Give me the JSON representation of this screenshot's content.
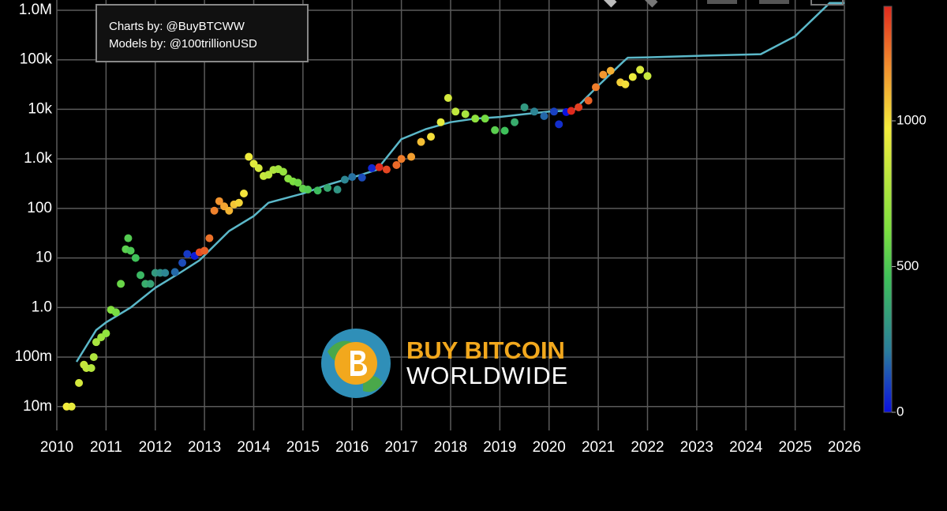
{
  "chart_data": {
    "type": "scatter",
    "log_y": true,
    "grid": true,
    "xlim": [
      2010,
      2026
    ],
    "xticks": [
      2010,
      2011,
      2012,
      2013,
      2014,
      2015,
      2016,
      2017,
      2018,
      2019,
      2020,
      2021,
      2022,
      2023,
      2024,
      2025,
      2026
    ],
    "ylim": [
      0.0033,
      1610000
    ],
    "yticks": [
      {
        "value": 0.01,
        "label": "10m"
      },
      {
        "value": 0.1,
        "label": "100m"
      },
      {
        "value": 1,
        "label": "1.0"
      },
      10,
      100,
      {
        "value": 1000,
        "label": "1.0k"
      },
      {
        "value": 10000,
        "label": "10k"
      },
      {
        "value": 100000,
        "label": "100k"
      },
      {
        "value": 1000000,
        "label": "1.0M"
      }
    ],
    "colorbar": {
      "clim": [
        0,
        1393
      ],
      "ticks": [
        0,
        500,
        1000
      ],
      "colorscale": [
        [
          0,
          "#0a10e0"
        ],
        [
          0.15,
          "#2a7c9c"
        ],
        [
          0.33,
          "#3ec05a"
        ],
        [
          0.45,
          "#7de040"
        ],
        [
          0.7,
          "#f4ec3c"
        ],
        [
          0.85,
          "#f2902e"
        ],
        [
          1,
          "#e02a1e"
        ]
      ]
    },
    "annotations": [
      "Charts by: @BuyBTCWW",
      "Models by: @100trillionUSD"
    ],
    "logo": [
      "BUY BITCOIN",
      "WORLDWIDE"
    ],
    "series": [
      {
        "mode": "markers",
        "x": [
          2010.2,
          2010.3,
          2010.45,
          2010.55,
          2010.6,
          2010.7,
          2010.75,
          2010.8,
          2010.9,
          2011.0,
          2011.1,
          2011.2,
          2011.3,
          2011.4,
          2011.45,
          2011.5,
          2011.6,
          2011.7,
          2011.8,
          2011.9,
          2012.0,
          2012.1,
          2012.2,
          2012.4,
          2012.55,
          2012.65,
          2012.8,
          2012.9,
          2013.0,
          2013.1,
          2013.2,
          2013.3,
          2013.4,
          2013.5,
          2013.6,
          2013.7,
          2013.8,
          2013.9,
          2014.0,
          2014.1,
          2014.2,
          2014.3,
          2014.4,
          2014.5,
          2014.6,
          2014.7,
          2014.8,
          2014.9,
          2015.0,
          2015.1,
          2015.3,
          2015.5,
          2015.7,
          2015.85,
          2016.0,
          2016.2,
          2016.4,
          2016.55,
          2016.7,
          2016.9,
          2017.0,
          2017.2,
          2017.4,
          2017.6,
          2017.8,
          2017.95,
          2018.1,
          2018.3,
          2018.5,
          2018.7,
          2018.9,
          2019.1,
          2019.3,
          2019.5,
          2019.7,
          2019.9,
          2020.1,
          2020.2,
          2020.35,
          2020.45,
          2020.6,
          2020.8,
          2020.95,
          2021.1,
          2021.25,
          2021.45,
          2021.55,
          2021.7,
          2021.85,
          2022.0
        ],
        "values": [
          0.01,
          0.01,
          0.03,
          0.07,
          0.06,
          0.06,
          0.1,
          0.2,
          0.25,
          0.3,
          0.9,
          0.8,
          3,
          15,
          25,
          14,
          10,
          4.5,
          3,
          3,
          5,
          5,
          5,
          5.2,
          8,
          12,
          11,
          13,
          14,
          25,
          90,
          140,
          110,
          90,
          120,
          130,
          200,
          1100,
          800,
          650,
          450,
          480,
          600,
          620,
          550,
          400,
          350,
          330,
          250,
          240,
          230,
          260,
          240,
          380,
          430,
          420,
          650,
          680,
          610,
          750,
          1000,
          1100,
          2200,
          2800,
          5500,
          17000,
          9000,
          8000,
          6500,
          6500,
          3800,
          3700,
          5500,
          11000,
          9000,
          7300,
          9000,
          5000,
          8800,
          9300,
          11000,
          15000,
          28000,
          50000,
          60000,
          35000,
          32000,
          45000,
          63000,
          47000
        ],
        "color_values": [
          975,
          938,
          883,
          847,
          828,
          792,
          774,
          755,
          719,
          683,
          646,
          610,
          573,
          537,
          518,
          500,
          463,
          427,
          391,
          354,
          318,
          281,
          245,
          172,
          117,
          80,
          26,
          1321,
          1285,
          1248,
          1212,
          1175,
          1139,
          1102,
          1066,
          1030,
          993,
          957,
          920,
          884,
          847,
          811,
          774,
          738,
          701,
          665,
          628,
          592,
          555,
          519,
          446,
          373,
          300,
          245,
          190,
          117,
          44,
          1391,
          1336,
          1263,
          1226,
          1153,
          1080,
          1007,
          934,
          880,
          825,
          752,
          679,
          606,
          533,
          460,
          387,
          314,
          241,
          168,
          95,
          58,
          4,
          1405,
          1351,
          1278,
          1223,
          1168,
          1114,
          1041,
          1004,
          949,
          895,
          840
        ]
      },
      {
        "mode": "line",
        "color": "#5bb8c9",
        "x": [
          2010.4,
          2010.8,
          2011.0,
          2011.5,
          2012.0,
          2012.5,
          2012.9,
          2013.5,
          2014.0,
          2014.3,
          2015.0,
          2015.5,
          2016.0,
          2016.5,
          2017.0,
          2017.5,
          2018.0,
          2018.5,
          2019.0,
          2019.5,
          2020.0,
          2020.5,
          2021.0,
          2021.5,
          2021.6,
          2022.0,
          2023.0,
          2024.3,
          2025.0,
          2025.7,
          2026.0
        ],
        "values": [
          0.08,
          0.35,
          0.5,
          1.0,
          2.5,
          5,
          9,
          35,
          70,
          130,
          200,
          300,
          420,
          600,
          2500,
          4000,
          5500,
          6500,
          7000,
          8000,
          9000,
          9500,
          30000,
          90000,
          110000,
          112000,
          120000,
          130000,
          300000,
          1400000,
          1400000
        ]
      }
    ]
  }
}
